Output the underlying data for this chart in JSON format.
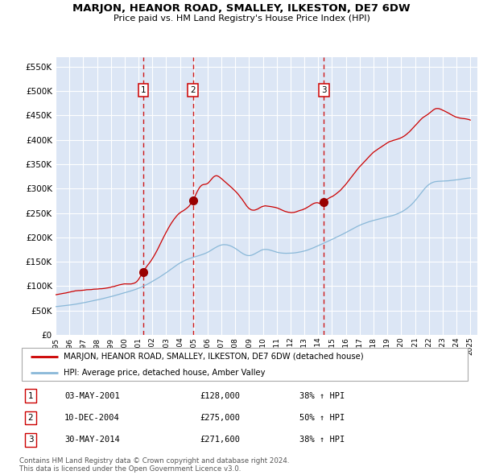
{
  "title": "MARJON, HEANOR ROAD, SMALLEY, ILKESTON, DE7 6DW",
  "subtitle": "Price paid vs. HM Land Registry's House Price Index (HPI)",
  "ytick_values": [
    0,
    50000,
    100000,
    150000,
    200000,
    250000,
    300000,
    350000,
    400000,
    450000,
    500000,
    550000
  ],
  "xmin": 1995.0,
  "xmax": 2025.5,
  "ymin": 0,
  "ymax": 570000,
  "sale_dates": [
    2001.34,
    2004.94,
    2014.41
  ],
  "sale_prices": [
    128000,
    275000,
    271600
  ],
  "sale_labels": [
    "1",
    "2",
    "3"
  ],
  "red_line_color": "#cc0000",
  "blue_line_color": "#89b8d8",
  "sale_marker_color": "#990000",
  "vline_color": "#cc0000",
  "background_color": "#dce6f5",
  "grid_color": "#ffffff",
  "legend_label_red": "MARJON, HEANOR ROAD, SMALLEY, ILKESTON, DE7 6DW (detached house)",
  "legend_label_blue": "HPI: Average price, detached house, Amber Valley",
  "table_rows": [
    [
      "1",
      "03-MAY-2001",
      "£128,000",
      "38% ↑ HPI"
    ],
    [
      "2",
      "10-DEC-2004",
      "£275,000",
      "50% ↑ HPI"
    ],
    [
      "3",
      "30-MAY-2014",
      "£271,600",
      "38% ↑ HPI"
    ]
  ],
  "footer_text": "Contains HM Land Registry data © Crown copyright and database right 2024.\nThis data is licensed under the Open Government Licence v3.0."
}
